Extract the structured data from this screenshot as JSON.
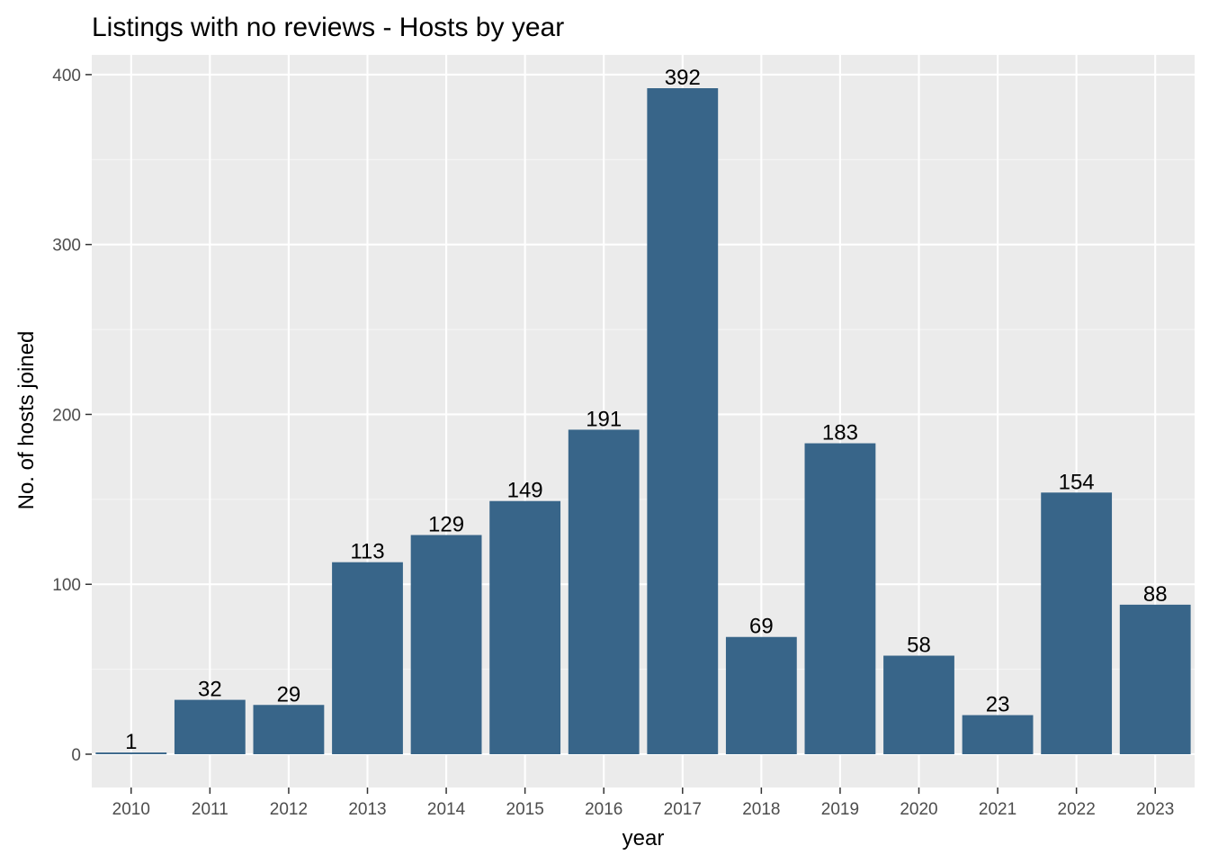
{
  "chart_data": {
    "type": "bar",
    "title": "Listings with no reviews - Hosts by year",
    "xlabel": "year",
    "ylabel": "No. of hosts joined",
    "categories": [
      "2010",
      "2011",
      "2012",
      "2013",
      "2014",
      "2015",
      "2016",
      "2017",
      "2018",
      "2019",
      "2020",
      "2021",
      "2022",
      "2023"
    ],
    "values": [
      1,
      32,
      29,
      113,
      129,
      149,
      191,
      392,
      69,
      183,
      58,
      23,
      154,
      88
    ],
    "ylim": [
      -19.6,
      411.6
    ],
    "yticks": [
      0,
      100,
      200,
      300,
      400
    ],
    "grid": true,
    "legend": "none",
    "show_data_labels": true
  },
  "colors": {
    "bar": "#386589",
    "panel": "#ebebeb",
    "grid_major": "#ffffff",
    "grid_minor": "#f5f5f5",
    "tick": "#333333"
  }
}
